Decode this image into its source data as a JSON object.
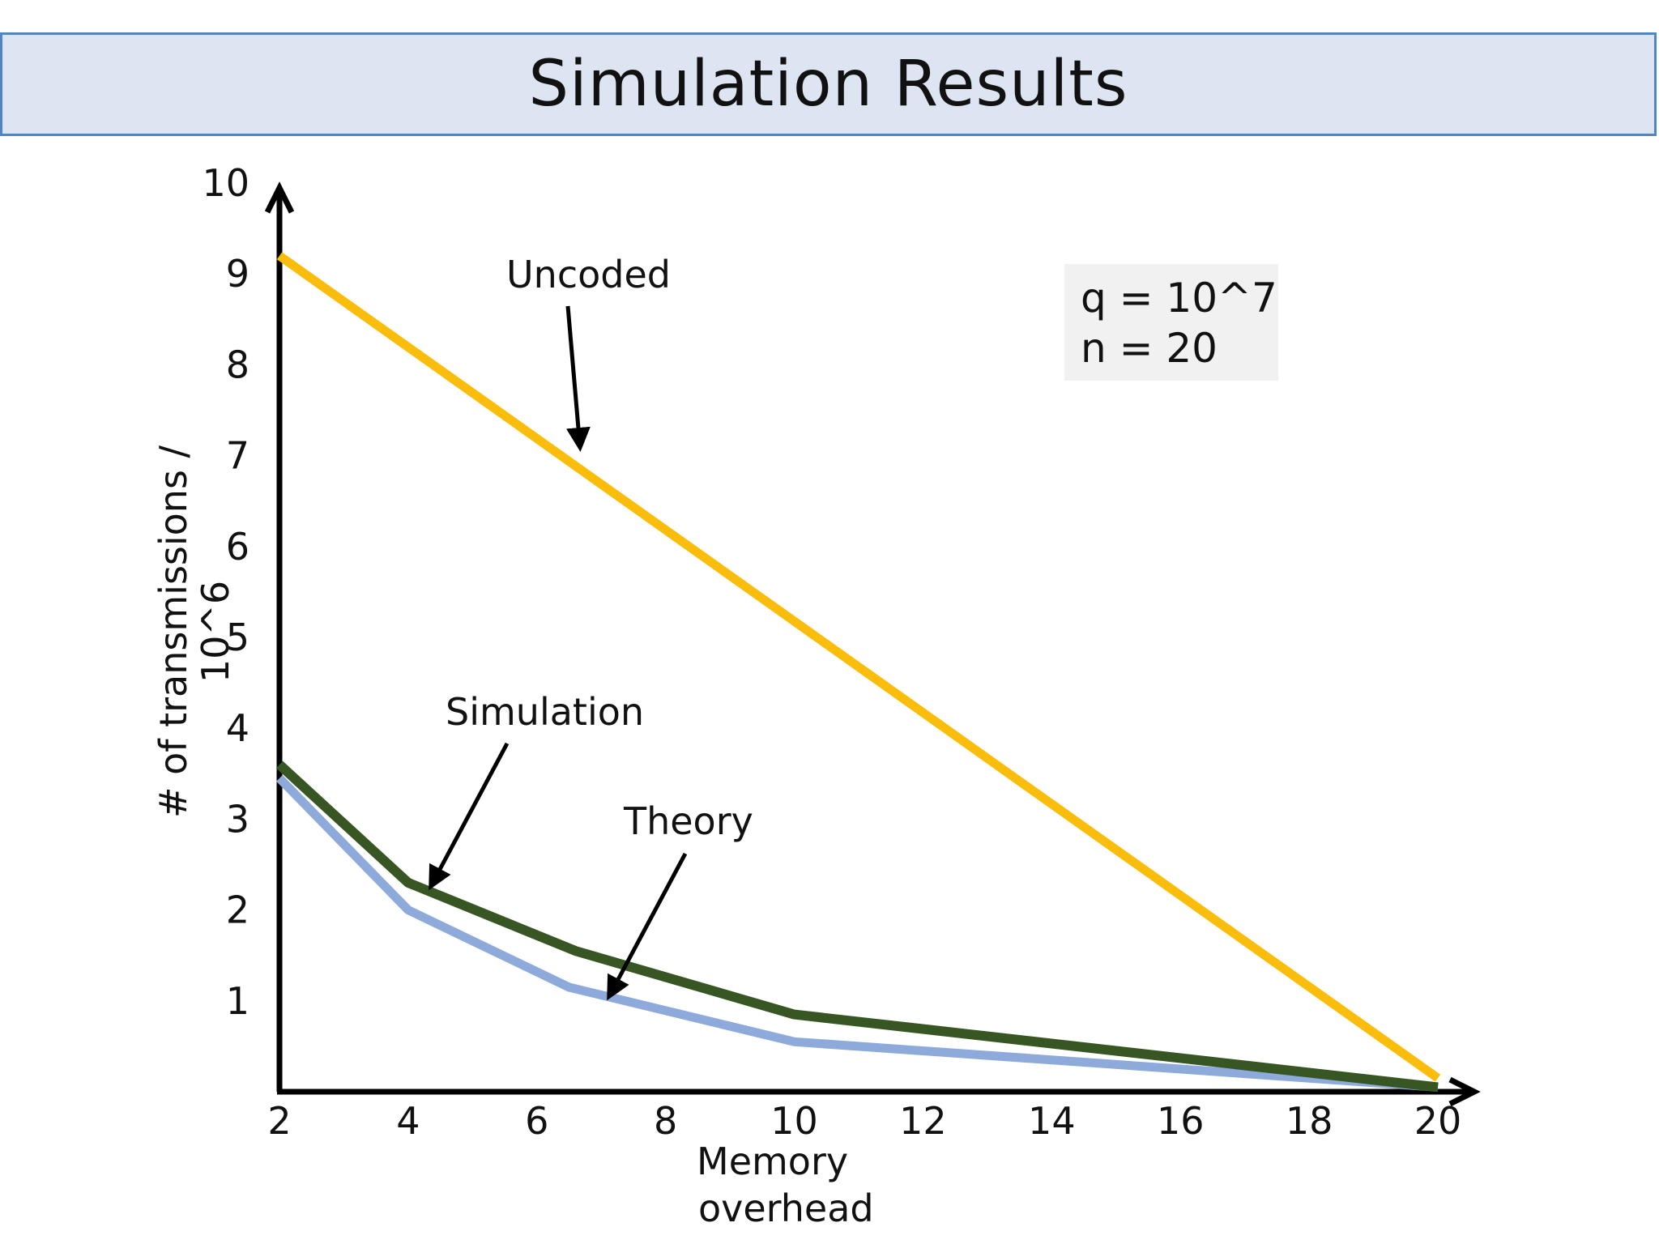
{
  "slide": {
    "title": "Simulation Results"
  },
  "chart_data": {
    "type": "line",
    "title": "",
    "xlabel": "Memory overhead",
    "xlabel_lines": [
      "Memory",
      "overhead"
    ],
    "ylabel": "# of transmissions / 10^6",
    "ylabel_lines": [
      "# of transmissions /",
      "10^6"
    ],
    "xlim": [
      2,
      20
    ],
    "ylim": [
      0,
      10
    ],
    "x_ticks": [
      "2",
      "4",
      "6",
      "8",
      "10",
      "12",
      "14",
      "16",
      "18",
      "20"
    ],
    "y_ticks": [
      "1",
      "2",
      "3",
      "4",
      "5",
      "6",
      "7",
      "8",
      "9",
      "10"
    ],
    "grid": false,
    "series": [
      {
        "name": "Uncoded",
        "color": "#fbbd0b",
        "x": [
          2,
          20
        ],
        "y": [
          9.2,
          0.15
        ]
      },
      {
        "name": "Simulation",
        "color": "#375623",
        "x": [
          2,
          4,
          6.6,
          10,
          20
        ],
        "y": [
          3.6,
          2.3,
          1.55,
          0.85,
          0.05
        ]
      },
      {
        "name": "Theory",
        "color": "#8eaadb",
        "x": [
          2,
          4,
          6.5,
          10,
          20
        ],
        "y": [
          3.45,
          2.0,
          1.15,
          0.55,
          0.05
        ]
      }
    ],
    "annotations": [
      {
        "text": "Uncoded",
        "series": "Uncoded"
      },
      {
        "text": "Simulation",
        "series": "Simulation"
      },
      {
        "text": "Theory",
        "series": "Theory"
      }
    ],
    "parameters": [
      "q = 10^7",
      "n = 20"
    ]
  }
}
